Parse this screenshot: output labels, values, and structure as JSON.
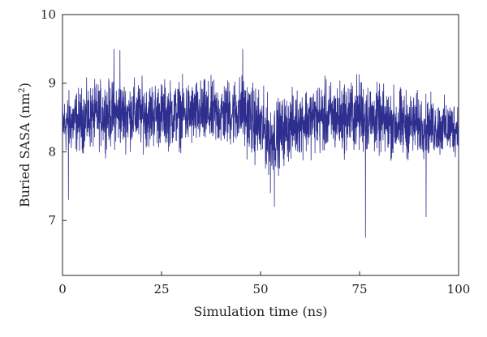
{
  "chart_data": {
    "type": "line",
    "title": "",
    "xlabel": "Simulation time (ns)",
    "ylabel_main": "Buried SASA (nm",
    "ylabel_sup": "2",
    "ylabel_close": ")",
    "xlim": [
      0,
      100
    ],
    "ylim": [
      6.2,
      10
    ],
    "x_ticks": [
      0,
      25,
      50,
      75,
      100
    ],
    "x_tick_labels": [
      "0",
      "25",
      "50",
      "75",
      "100"
    ],
    "y_ticks": [
      7,
      8,
      9,
      10
    ],
    "y_tick_labels": [
      "7",
      "8",
      "9",
      "10"
    ],
    "grid": false,
    "legend": "none",
    "line_color": "#2e2e8f",
    "series": [
      {
        "mean": 8.45,
        "envelope": {
          "x": [
            0,
            10,
            20,
            30,
            40,
            45,
            50,
            53,
            57,
            60,
            65,
            70,
            75,
            80,
            85,
            90,
            95,
            100
          ],
          "upper": [
            9.0,
            9.2,
            9.2,
            9.2,
            9.2,
            9.3,
            9.1,
            8.9,
            9.0,
            9.1,
            9.2,
            9.2,
            9.3,
            9.1,
            9.1,
            9.0,
            8.9,
            8.9
          ],
          "lower": [
            7.8,
            7.9,
            7.9,
            7.9,
            7.9,
            7.9,
            7.6,
            7.5,
            7.7,
            7.8,
            7.8,
            7.8,
            7.8,
            7.8,
            7.7,
            7.8,
            7.8,
            7.8
          ]
        },
        "spikes": [
          {
            "x": 1.5,
            "y": 7.3
          },
          {
            "x": 13.0,
            "y": 9.5
          },
          {
            "x": 14.5,
            "y": 9.48
          },
          {
            "x": 45.5,
            "y": 9.5
          },
          {
            "x": 52.5,
            "y": 7.4
          },
          {
            "x": 53.5,
            "y": 7.2
          },
          {
            "x": 76.5,
            "y": 6.75
          },
          {
            "x": 91.8,
            "y": 7.05
          }
        ]
      }
    ]
  }
}
